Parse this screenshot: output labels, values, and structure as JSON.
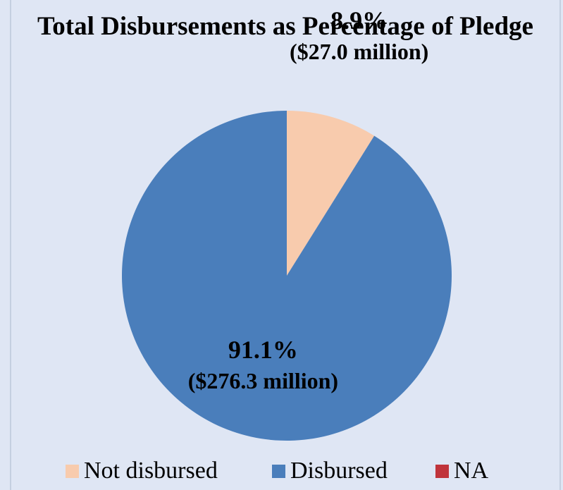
{
  "chart_data": {
    "type": "pie",
    "title": "Total Disbursements as Percentage of Pledge",
    "categories": [
      "Not disbursed",
      "Disbursed",
      "NA"
    ],
    "values": [
      8.9,
      91.1,
      0
    ],
    "value_labels": [
      {
        "percent": "8.9%",
        "amount": "($27.0 million)"
      },
      {
        "percent": "91.1%",
        "amount": "($276.3 million)"
      },
      {
        "percent": "",
        "amount": ""
      }
    ],
    "colors": [
      "#f8cbad",
      "#4a7ebb",
      "#c0343b"
    ],
    "start_angle_deg": 0,
    "direction": "clockwise",
    "legend": {
      "position": "bottom",
      "entries": [
        "Not disbursed",
        "Disbursed",
        "NA"
      ]
    }
  }
}
